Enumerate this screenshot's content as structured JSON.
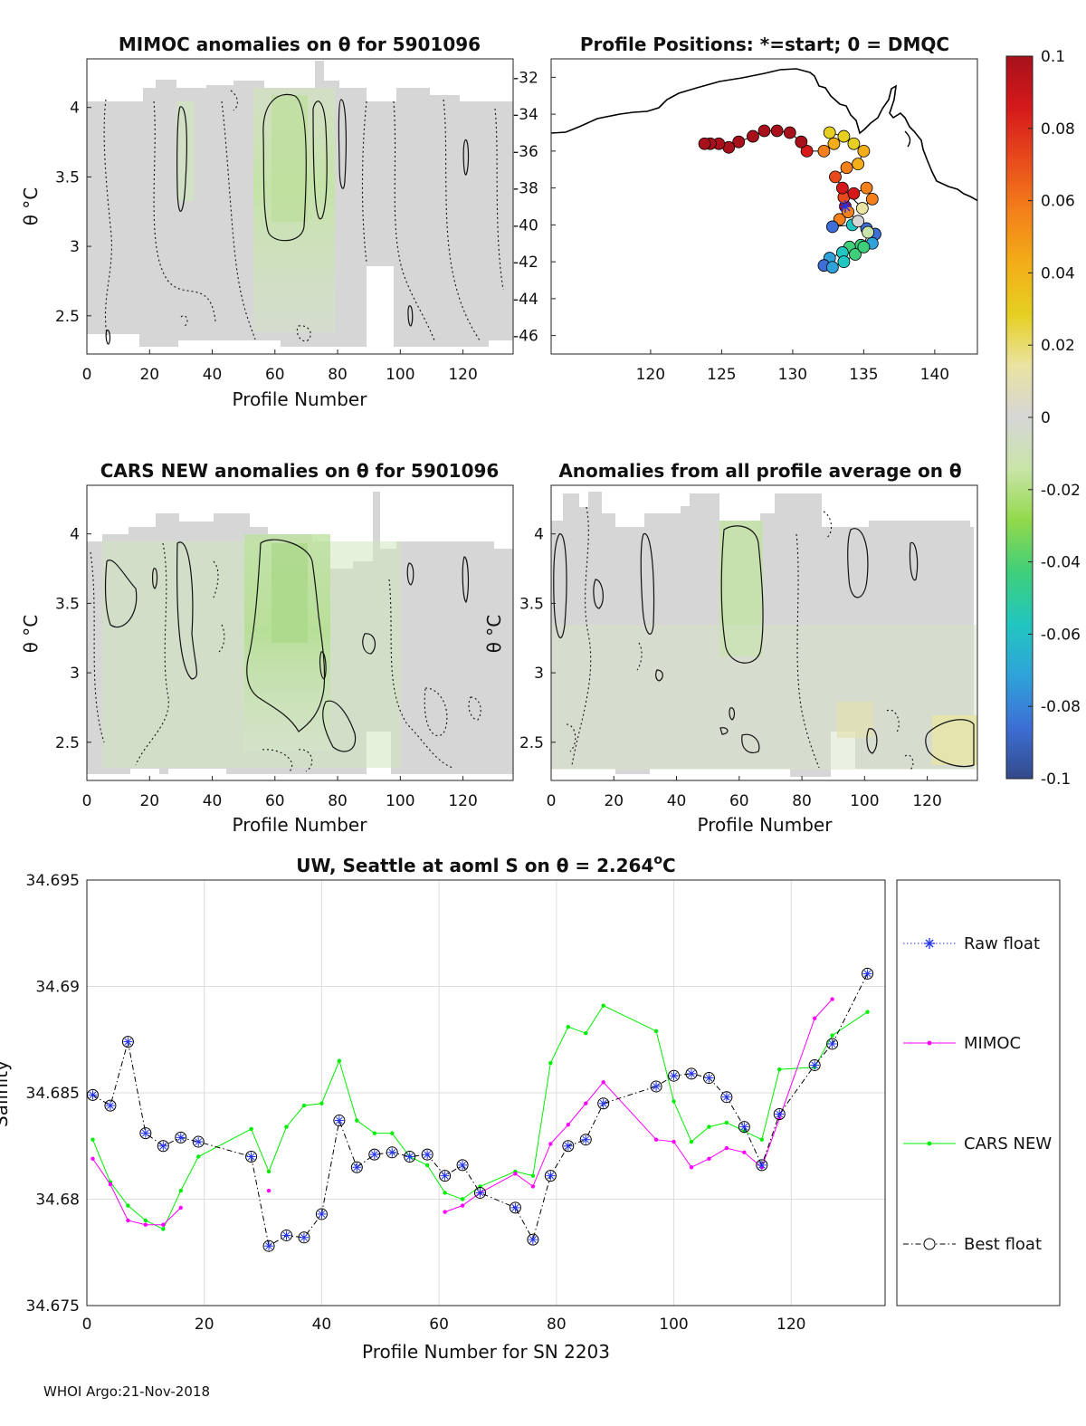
{
  "footer": "WHOI Argo:21-Nov-2018",
  "panels": {
    "mimoc": {
      "title": "MIMOC anomalies on θ  for 5901096",
      "ylabel": "θ °C",
      "xlabel": "Profile Number"
    },
    "positions": {
      "title": "Profile Positions: *=start; 0 = DMQC"
    },
    "cars": {
      "title": "CARS NEW anomalies on θ for 5901096",
      "ylabel": "θ °C",
      "xlabel": "Profile Number"
    },
    "allavg": {
      "title": "Anomalies from all profile average on θ",
      "ylabel": "θ °C",
      "xlabel": "Profile Number"
    }
  },
  "colorbar": {
    "ticks": [
      "0.1",
      "0.08",
      "0.06",
      "0.04",
      "0.02",
      "0",
      "-0.02",
      "-0.04",
      "-0.06",
      "-0.08",
      "-0.1"
    ],
    "colors": [
      "#334a8a",
      "#3d6fd6",
      "#2fa3d9",
      "#22c6c0",
      "#3fcf7a",
      "#92d94b",
      "#c9e4a8",
      "#d6d6d6",
      "#eae3a2",
      "#e6cf21",
      "#f3ad18",
      "#f3801a",
      "#e84a1c",
      "#d5191b",
      "#a8111b"
    ]
  },
  "chart_data": [
    {
      "id": "mimoc_anom",
      "type": "heatmap",
      "title": "MIMOC anomalies on θ  for 5901096",
      "xlabel": "Profile Number",
      "ylabel": "θ °C",
      "xlim": [
        0,
        136
      ],
      "ylim": [
        2.225,
        4.35
      ],
      "xticks": [
        0,
        20,
        40,
        60,
        80,
        100,
        120
      ],
      "yticks": [
        2.5,
        3,
        3.5,
        4
      ]
    },
    {
      "id": "positions",
      "type": "scatter",
      "title": "Profile Positions: *=start; 0 = DMQC",
      "xlim": [
        113,
        143
      ],
      "ylim": [
        -47,
        -31
      ],
      "xticks": [
        120,
        125,
        130,
        135,
        140
      ],
      "yticks": [
        -32,
        -34,
        -36,
        -38,
        -40,
        -42,
        -44,
        -46
      ],
      "start": {
        "lon": 133.7,
        "lat": -39.0
      },
      "track": [
        [
          133.7,
          -39.0,
          0.1
        ],
        [
          133.3,
          -39.7,
          0.05
        ],
        [
          132.8,
          -40.1,
          -0.09
        ],
        [
          134.2,
          -40.0,
          -0.06
        ],
        [
          135.2,
          -40.2,
          -0.08
        ],
        [
          135.8,
          -40.5,
          -0.09
        ],
        [
          135.6,
          -41.0,
          -0.07
        ],
        [
          134.8,
          -41.1,
          -0.05
        ],
        [
          134.0,
          -41.2,
          -0.04
        ],
        [
          133.5,
          -41.5,
          -0.06
        ],
        [
          132.6,
          -41.8,
          -0.07
        ],
        [
          132.2,
          -42.2,
          -0.08
        ],
        [
          132.8,
          -42.3,
          -0.07
        ],
        [
          133.6,
          -42.0,
          -0.06
        ],
        [
          134.4,
          -41.6,
          -0.05
        ],
        [
          135.0,
          -41.2,
          -0.04
        ],
        [
          135.3,
          -40.4,
          -0.02
        ],
        [
          134.6,
          -39.8,
          0.0
        ],
        [
          133.9,
          -39.3,
          0.06
        ],
        [
          133.6,
          -38.5,
          0.07
        ],
        [
          134.3,
          -38.3,
          0.08
        ],
        [
          135.2,
          -38.0,
          0.06
        ],
        [
          135.6,
          -38.6,
          0.05
        ],
        [
          134.9,
          -39.1,
          0.02
        ],
        [
          133.5,
          -38.0,
          0.08
        ],
        [
          133.0,
          -37.4,
          0.07
        ],
        [
          133.8,
          -36.9,
          0.05
        ],
        [
          134.6,
          -36.7,
          0.04
        ],
        [
          135.0,
          -36.0,
          0.04
        ],
        [
          134.3,
          -35.6,
          0.03
        ],
        [
          133.6,
          -35.2,
          0.03
        ],
        [
          132.6,
          -35.0,
          0.03
        ],
        [
          132.9,
          -35.6,
          0.04
        ],
        [
          132.2,
          -36.0,
          0.05
        ],
        [
          131.0,
          -36.0,
          0.09
        ],
        [
          130.6,
          -35.5,
          0.1
        ],
        [
          129.8,
          -35.0,
          0.1
        ],
        [
          128.9,
          -34.9,
          0.1
        ],
        [
          128.0,
          -34.9,
          0.1
        ],
        [
          127.2,
          -35.2,
          0.1
        ],
        [
          126.2,
          -35.5,
          0.1
        ],
        [
          125.5,
          -35.8,
          0.1
        ],
        [
          124.8,
          -35.6,
          0.1
        ],
        [
          124.2,
          -35.6,
          0.1
        ],
        [
          123.8,
          -35.6,
          0.1
        ]
      ]
    },
    {
      "id": "cars_anom",
      "type": "heatmap",
      "title": "CARS NEW anomalies on θ for 5901096",
      "xlabel": "Profile Number",
      "ylabel": "θ °C",
      "xlim": [
        0,
        136
      ],
      "ylim": [
        2.225,
        4.35
      ],
      "xticks": [
        0,
        20,
        40,
        60,
        80,
        100,
        120
      ],
      "yticks": [
        2.5,
        3,
        3.5,
        4
      ]
    },
    {
      "id": "allavg_anom",
      "type": "heatmap",
      "title": "Anomalies from all profile average on θ",
      "xlabel": "Profile Number",
      "ylabel": "θ °C",
      "xlim": [
        0,
        136
      ],
      "ylim": [
        2.225,
        4.35
      ],
      "xticks": [
        0,
        20,
        40,
        60,
        80,
        100,
        120
      ],
      "yticks": [
        2.5,
        3,
        3.5,
        4
      ]
    },
    {
      "id": "salinity",
      "type": "line",
      "title": "UW, Seattle at aoml S on θ = 2.264°C",
      "title_main": "UW, Seattle at aoml S on θ = 2.264",
      "title_sup": "o",
      "title_tail": "C",
      "xlabel": "Profile Number for SN 2203",
      "ylabel": "Salinity",
      "xlim": [
        0,
        136
      ],
      "ylim": [
        34.675,
        34.695
      ],
      "xticks": [
        0,
        20,
        40,
        60,
        80,
        100,
        120
      ],
      "yticks": [
        34.675,
        34.68,
        34.685,
        34.69,
        34.695
      ],
      "ytick_labels": [
        "34.675",
        "34.68",
        "34.685",
        "34.69",
        "34.695"
      ],
      "legend": [
        "Raw float",
        "MIMOC",
        "CARS NEW",
        "Best float"
      ],
      "series": [
        {
          "name": "Best float",
          "color": "#000000",
          "x": [
            1,
            4,
            7,
            10,
            13,
            16,
            19,
            28,
            31,
            34,
            37,
            40,
            43,
            46,
            49,
            52,
            55,
            58,
            61,
            64,
            67,
            73,
            76,
            79,
            82,
            85,
            88,
            97,
            100,
            103,
            106,
            109,
            112,
            115,
            118,
            124,
            127,
            133
          ],
          "y": [
            34.6849,
            34.6844,
            34.6874,
            34.6831,
            34.6825,
            34.6829,
            34.6827,
            34.682,
            34.6778,
            34.6783,
            34.6782,
            34.6793,
            34.6837,
            34.6815,
            34.6821,
            34.6822,
            34.682,
            34.6821,
            34.6811,
            34.6816,
            34.6803,
            34.6796,
            34.6781,
            34.6811,
            34.6825,
            34.6828,
            34.6845,
            34.6853,
            34.6858,
            34.6859,
            34.6857,
            34.6848,
            34.6834,
            34.6816,
            34.684,
            34.6863,
            34.6873,
            34.6906
          ]
        },
        {
          "name": "MIMOC",
          "color": "#ff00ff",
          "x": [
            1,
            4,
            7,
            10,
            13,
            16,
            null,
            31,
            null,
            61,
            64,
            67,
            73,
            76,
            79,
            82,
            85,
            88,
            97,
            100,
            103,
            106,
            109,
            112,
            115,
            118,
            124,
            127
          ],
          "y": [
            34.6819,
            34.6807,
            34.679,
            34.6788,
            34.6788,
            34.6796,
            null,
            34.6804,
            null,
            34.6794,
            34.6797,
            34.6803,
            34.6812,
            34.6806,
            34.6826,
            34.6835,
            34.6845,
            34.6855,
            34.6828,
            34.6827,
            34.6815,
            34.6819,
            34.6824,
            34.6822,
            34.6815,
            34.6838,
            34.6885,
            34.6894
          ]
        },
        {
          "name": "CARS NEW",
          "color": "#00ee00",
          "x": [
            1,
            4,
            7,
            10,
            13,
            16,
            19,
            28,
            31,
            34,
            37,
            40,
            43,
            46,
            49,
            52,
            55,
            58,
            61,
            64,
            67,
            73,
            76,
            79,
            82,
            85,
            88,
            97,
            100,
            103,
            106,
            109,
            112,
            115,
            118,
            124,
            127,
            133
          ],
          "y": [
            34.6828,
            34.6808,
            34.6797,
            34.679,
            34.6786,
            34.6804,
            34.682,
            34.6833,
            34.6813,
            34.6834,
            34.6844,
            34.6845,
            34.6865,
            34.6837,
            34.6831,
            34.6831,
            34.682,
            34.6816,
            34.6803,
            34.68,
            34.6806,
            34.6813,
            34.6811,
            34.6864,
            34.6881,
            34.6878,
            34.6891,
            34.6879,
            34.6846,
            34.6827,
            34.6834,
            34.6836,
            34.6832,
            34.6828,
            34.6861,
            34.6862,
            34.6877,
            34.6888
          ]
        }
      ]
    }
  ]
}
